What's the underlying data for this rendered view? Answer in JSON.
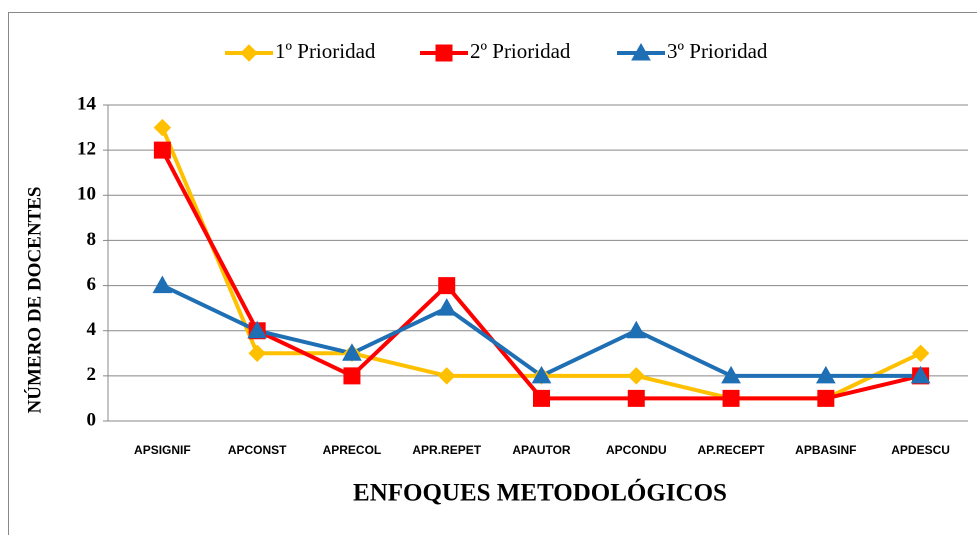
{
  "chart_data": {
    "type": "line",
    "categories": [
      "APSIGNIF",
      "APCONST",
      "APRECOL",
      "APR.REPET",
      "APAUTOR",
      "APCONDU",
      "AP.RECEPT",
      "APBASINF",
      "APDESCU"
    ],
    "series": [
      {
        "name": "1º Prioridad",
        "color": "#ffc000",
        "marker": "diamond",
        "values": [
          13,
          3,
          3,
          2,
          2,
          2,
          1,
          1,
          3
        ]
      },
      {
        "name": "2º Prioridad",
        "color": "#ff0000",
        "marker": "square",
        "values": [
          12,
          4,
          2,
          6,
          1,
          1,
          1,
          1,
          2
        ]
      },
      {
        "name": "3º Prioridad",
        "color": "#1f6fb5",
        "marker": "triangle",
        "values": [
          6,
          4,
          3,
          5,
          2,
          4,
          2,
          2,
          2
        ]
      }
    ],
    "ylim": [
      0,
      14
    ],
    "yticks": [
      0,
      2,
      4,
      6,
      8,
      10,
      12,
      14
    ],
    "grid": true,
    "y_label": "NÚMERO DE DOCENTES",
    "x_label": "ENFOQUES METODOLÓGICOS",
    "legend": "top"
  }
}
